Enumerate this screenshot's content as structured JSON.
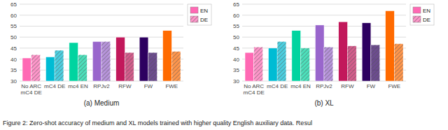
{
  "caption": "Figure 2: Zero-shot accuracy of medium and XL models trained with higher quality English auxiliary data. Resul",
  "chart_data": [
    {
      "type": "bar",
      "title": "(a) Medium",
      "categories": [
        "No ARC\nmC4 DE",
        "mC4 DE",
        "mc4 EN",
        "RPJv2",
        "RFW",
        "FW",
        "FWE"
      ],
      "series": [
        {
          "name": "EN",
          "color": "#ff69b4",
          "colors": [
            "#ff69b4",
            "#00bcd4",
            "#00d4a0",
            "#9966cc",
            "#c2185b",
            "#2d0060",
            "#ff6a00"
          ],
          "values": [
            40.5,
            41.0,
            47.5,
            48.0,
            50.0,
            50.0,
            53.0
          ]
        },
        {
          "name": "DE",
          "color": "#ff69b4",
          "colors": [
            "#ff69b4",
            "#00bcd4",
            "#00d4a0",
            "#9966cc",
            "#c2185b",
            "#2d0060",
            "#ff6a00"
          ],
          "values": [
            42.0,
            44.0,
            42.0,
            48.0,
            43.0,
            43.0,
            43.5
          ]
        }
      ],
      "ylim": [
        30,
        65
      ],
      "yticks": [
        30,
        35,
        40,
        45,
        50,
        55,
        60,
        65
      ],
      "grid": true,
      "legend": "upper right"
    },
    {
      "type": "bar",
      "title": "(b) XL",
      "categories": [
        "No ARC\nmC4 DE",
        "mC4 DE",
        "mc4 EN",
        "RPJv2",
        "RFW",
        "FW",
        "FWE"
      ],
      "series": [
        {
          "name": "EN",
          "color": "#ff69b4",
          "colors": [
            "#ff69b4",
            "#00bcd4",
            "#00d4a0",
            "#9966cc",
            "#c2185b",
            "#2d0060",
            "#ff6a00"
          ],
          "values": [
            43.0,
            45.0,
            53.0,
            55.5,
            57.0,
            56.5,
            62.0
          ]
        },
        {
          "name": "DE",
          "color": "#ff69b4",
          "colors": [
            "#ff69b4",
            "#00bcd4",
            "#00d4a0",
            "#9966cc",
            "#c2185b",
            "#2d0060",
            "#ff6a00"
          ],
          "values": [
            45.5,
            48.0,
            45.0,
            45.5,
            46.0,
            46.5,
            47.0
          ]
        }
      ],
      "ylim": [
        30,
        65
      ],
      "yticks": [
        30,
        35,
        40,
        45,
        50,
        55,
        60,
        65
      ],
      "grid": true,
      "legend": "upper right"
    }
  ]
}
